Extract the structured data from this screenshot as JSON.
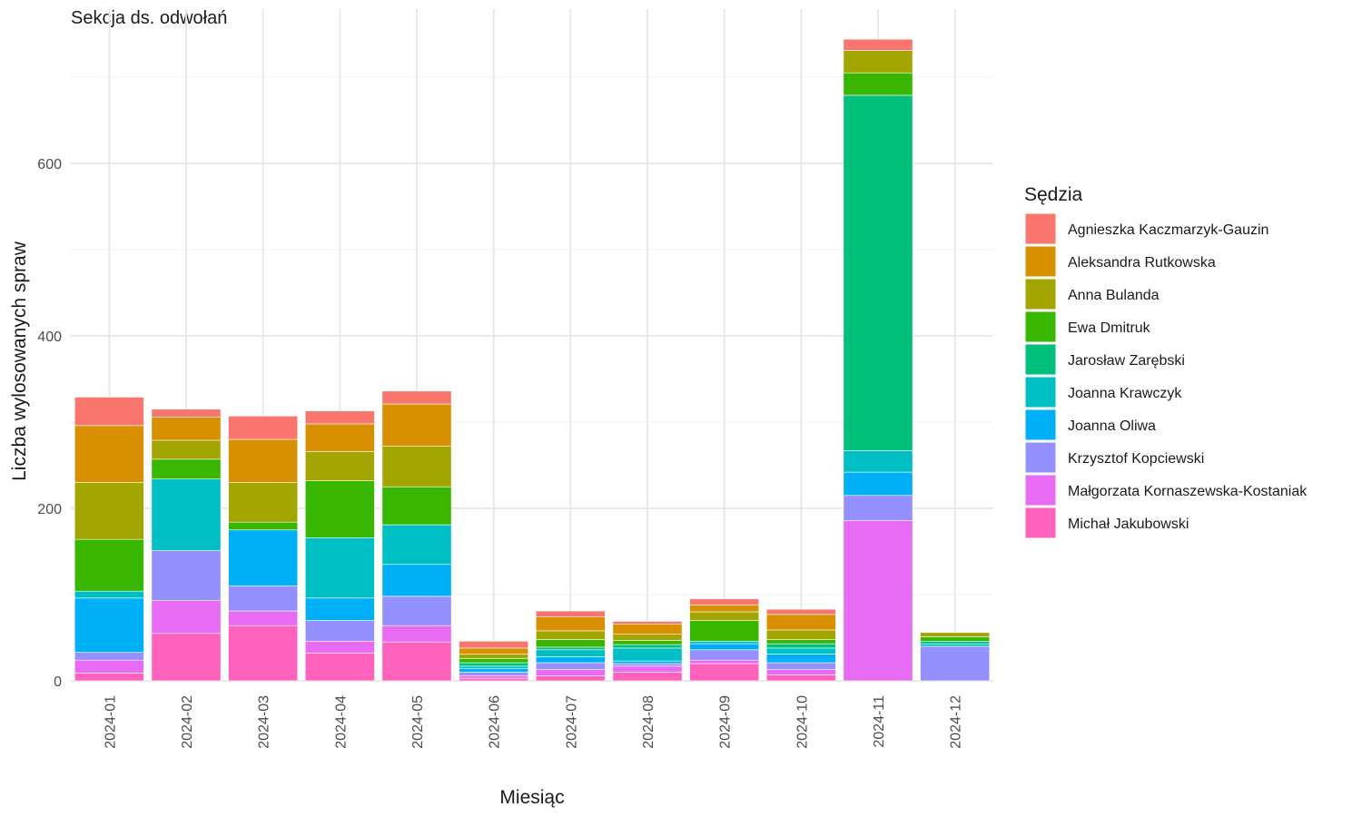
{
  "chart_data": {
    "type": "bar",
    "stacked": true,
    "title": "Sekcja ds. odwołań",
    "xlabel": "Miesiąc",
    "ylabel": "Liczba wylosowanych spraw",
    "ylim": [
      0,
      750
    ],
    "yticks": [
      0,
      200,
      400,
      600
    ],
    "grid": true,
    "legend_title": "Sędzia",
    "legend_position": "right",
    "categories": [
      "2024-01",
      "2024-02",
      "2024-03",
      "2024-04",
      "2024-05",
      "2024-06",
      "2024-07",
      "2024-08",
      "2024-09",
      "2024-10",
      "2024-11",
      "2024-12"
    ],
    "series": [
      {
        "name": "Agnieszka Kaczmarzyk-Gauzin",
        "color": "#F8766D",
        "values": [
          33,
          9,
          27,
          15,
          15,
          8,
          7,
          3,
          7,
          6,
          13,
          0
        ]
      },
      {
        "name": "Aleksandra Rutkowska",
        "color": "#D89000",
        "values": [
          66,
          27,
          50,
          32,
          49,
          7,
          16,
          12,
          8,
          18,
          0,
          0
        ]
      },
      {
        "name": "Anna Bulanda",
        "color": "#A3A500",
        "values": [
          66,
          22,
          46,
          34,
          47,
          5,
          10,
          7,
          10,
          11,
          26,
          5
        ]
      },
      {
        "name": "Ewa Dmitruk",
        "color": "#39B600",
        "values": [
          60,
          23,
          9,
          66,
          44,
          5,
          9,
          5,
          24,
          5,
          26,
          5
        ]
      },
      {
        "name": "Jarosław Zarębski",
        "color": "#00BF7D",
        "values": [
          0,
          0,
          0,
          0,
          0,
          4,
          3,
          4,
          0,
          5,
          412,
          3
        ]
      },
      {
        "name": "Joanna Krawczyk",
        "color": "#00BFC4",
        "values": [
          8,
          83,
          0,
          70,
          46,
          3,
          8,
          15,
          3,
          7,
          25,
          3
        ]
      },
      {
        "name": "Joanna Oliwa",
        "color": "#00B0F6",
        "values": [
          63,
          0,
          65,
          26,
          37,
          4,
          7,
          3,
          7,
          10,
          27,
          0
        ]
      },
      {
        "name": "Krzysztof Kopciewski",
        "color": "#9590FF",
        "values": [
          9,
          58,
          29,
          24,
          34,
          4,
          8,
          3,
          12,
          8,
          29,
          40
        ]
      },
      {
        "name": "Małgorzata Kornaszewska-Kostaniak",
        "color": "#E76BF3",
        "values": [
          15,
          38,
          17,
          14,
          19,
          3,
          7,
          7,
          4,
          6,
          186,
          0
        ]
      },
      {
        "name": "Michał Jakubowski",
        "color": "#FF62BC",
        "values": [
          9,
          55,
          64,
          32,
          45,
          3,
          6,
          10,
          20,
          7,
          0,
          0
        ]
      }
    ]
  }
}
